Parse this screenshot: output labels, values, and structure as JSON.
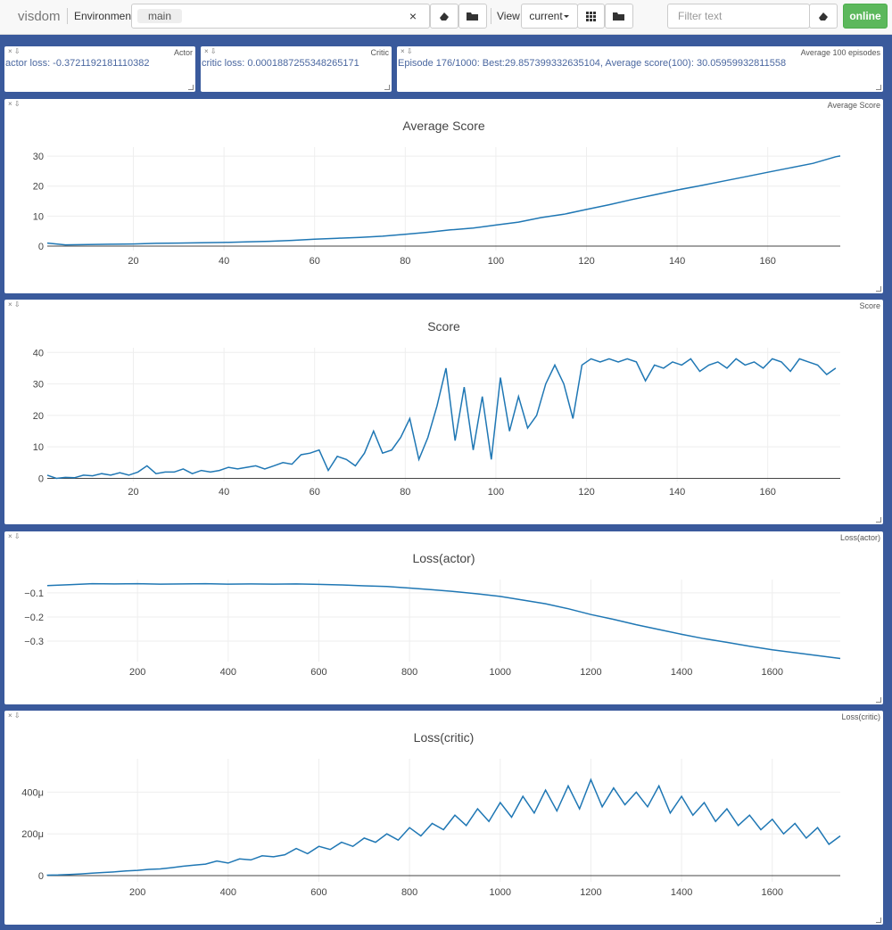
{
  "toolbar": {
    "brand": "visdom",
    "environment_label": "Environment",
    "environment": "main",
    "clear": "×",
    "view_label": "View",
    "view": "current",
    "filter_placeholder": "Filter text",
    "status": "online"
  },
  "text_panes": [
    {
      "title": "Actor",
      "text": "actor loss: -0.3721192181110382"
    },
    {
      "title": "Critic",
      "text": "critic loss: 0.0001887255348265171"
    },
    {
      "title": "Average 100 episodes",
      "text": "Episode 176/1000: Best:29.857399332635104, Average score(100): 30.05959932811558"
    }
  ],
  "chart_data": [
    {
      "type": "line",
      "pane_title": "Average Score",
      "title": "Average Score",
      "color": "#1f77b4",
      "grid": true,
      "x": [
        1,
        5,
        10,
        15,
        20,
        25,
        30,
        35,
        40,
        45,
        50,
        55,
        60,
        65,
        70,
        75,
        80,
        85,
        90,
        95,
        100,
        105,
        110,
        115,
        120,
        125,
        130,
        135,
        140,
        145,
        150,
        155,
        160,
        165,
        170,
        175,
        176
      ],
      "values": [
        1.0,
        0.4,
        0.5,
        0.6,
        0.7,
        0.9,
        1.0,
        1.1,
        1.2,
        1.4,
        1.6,
        1.9,
        2.3,
        2.6,
        2.9,
        3.3,
        3.9,
        4.6,
        5.4,
        6.0,
        7.0,
        8.0,
        9.5,
        10.6,
        12.2,
        13.8,
        15.5,
        17.1,
        18.7,
        20.1,
        21.6,
        23.1,
        24.6,
        26.1,
        27.6,
        29.8,
        30.06
      ],
      "xlim": [
        1,
        176
      ],
      "xticks": [
        20,
        40,
        60,
        80,
        100,
        120,
        140,
        160
      ],
      "ylim": [
        -1.5,
        33
      ],
      "yticks": [
        0,
        10,
        20,
        30
      ]
    },
    {
      "type": "line",
      "pane_title": "Score",
      "title": "Score",
      "color": "#1f77b4",
      "grid": true,
      "x": [
        1,
        3,
        5,
        7,
        9,
        11,
        13,
        15,
        17,
        19,
        21,
        23,
        25,
        27,
        29,
        31,
        33,
        35,
        37,
        39,
        41,
        43,
        45,
        47,
        49,
        51,
        53,
        55,
        57,
        59,
        61,
        63,
        65,
        67,
        69,
        71,
        73,
        75,
        77,
        79,
        81,
        83,
        85,
        87,
        89,
        91,
        93,
        95,
        97,
        99,
        101,
        103,
        105,
        107,
        109,
        111,
        113,
        115,
        117,
        119,
        121,
        123,
        125,
        127,
        129,
        131,
        133,
        135,
        137,
        139,
        141,
        143,
        145,
        147,
        149,
        151,
        153,
        155,
        157,
        159,
        161,
        163,
        165,
        167,
        169,
        171,
        173,
        175
      ],
      "values": [
        1,
        0,
        0.3,
        0.2,
        1,
        0.8,
        1.5,
        1,
        1.8,
        1,
        2,
        4,
        1.5,
        2,
        2,
        3,
        1.5,
        2.5,
        2,
        2.5,
        3.5,
        3,
        3.5,
        4,
        3,
        4,
        5,
        4.5,
        7.5,
        8,
        9,
        2.5,
        7,
        6,
        4,
        8,
        15,
        8,
        9,
        13,
        19,
        6,
        13,
        23,
        35,
        12,
        29,
        9,
        26,
        6,
        32,
        15,
        26,
        16,
        20,
        30,
        36,
        30,
        19,
        36,
        38,
        37,
        38,
        37,
        38,
        37,
        31,
        36,
        35,
        37,
        36,
        38,
        34,
        36,
        37,
        35,
        38,
        36,
        37,
        35,
        38,
        37,
        34,
        38,
        37,
        36,
        33,
        35
      ],
      "xlim": [
        1,
        176
      ],
      "xticks": [
        20,
        40,
        60,
        80,
        100,
        120,
        140,
        160
      ],
      "ylim": [
        -1,
        41.5
      ],
      "yticks": [
        0,
        10,
        20,
        30,
        40
      ]
    },
    {
      "type": "line",
      "pane_title": "Loss(actor)",
      "title": "Loss(actor)",
      "color": "#1f77b4",
      "grid": true,
      "x": [
        1,
        50,
        100,
        150,
        200,
        250,
        300,
        350,
        400,
        450,
        500,
        550,
        600,
        650,
        700,
        750,
        800,
        850,
        900,
        950,
        1000,
        1050,
        1100,
        1150,
        1200,
        1250,
        1300,
        1350,
        1400,
        1450,
        1500,
        1550,
        1600,
        1650,
        1700,
        1750
      ],
      "values": [
        -0.07,
        -0.066,
        -0.062,
        -0.063,
        -0.062,
        -0.064,
        -0.063,
        -0.062,
        -0.064,
        -0.063,
        -0.064,
        -0.063,
        -0.065,
        -0.067,
        -0.071,
        -0.074,
        -0.08,
        -0.087,
        -0.095,
        -0.104,
        -0.115,
        -0.13,
        -0.145,
        -0.166,
        -0.19,
        -0.21,
        -0.232,
        -0.252,
        -0.272,
        -0.29,
        -0.305,
        -0.321,
        -0.336,
        -0.348,
        -0.36,
        -0.372
      ],
      "xlim": [
        1,
        1750
      ],
      "xticks": [
        200,
        400,
        600,
        800,
        1000,
        1200,
        1400,
        1600
      ],
      "ylim": [
        -0.385,
        -0.045
      ],
      "yticks": [
        {
          "value": -0.1,
          "label": "−0.1"
        },
        {
          "value": -0.2,
          "label": "−0.2"
        },
        {
          "value": -0.3,
          "label": "−0.3"
        }
      ]
    },
    {
      "type": "line",
      "pane_title": "Loss(critic)",
      "title": "Loss(critic)",
      "color": "#1f77b4",
      "grid": true,
      "x": [
        0,
        25,
        50,
        75,
        100,
        125,
        150,
        175,
        200,
        225,
        250,
        275,
        300,
        325,
        350,
        375,
        400,
        425,
        450,
        475,
        500,
        525,
        550,
        575,
        600,
        625,
        650,
        675,
        700,
        725,
        750,
        775,
        800,
        825,
        850,
        875,
        900,
        925,
        950,
        975,
        1000,
        1025,
        1050,
        1075,
        1100,
        1125,
        1150,
        1175,
        1200,
        1225,
        1250,
        1275,
        1300,
        1325,
        1350,
        1375,
        1400,
        1425,
        1450,
        1475,
        1500,
        1525,
        1550,
        1575,
        1600,
        1625,
        1650,
        1675,
        1700,
        1725,
        1750
      ],
      "values": [
        2e-06,
        3e-06,
        5e-06,
        8e-06,
        1.2e-05,
        1.5e-05,
        1.8e-05,
        2.2e-05,
        2.5e-05,
        3e-05,
        3.2e-05,
        3.8e-05,
        4.5e-05,
        5e-05,
        5.5e-05,
        7e-05,
        6e-05,
        8e-05,
        7.5e-05,
        9.5e-05,
        9e-05,
        0.0001,
        0.00013,
        0.000105,
        0.00014,
        0.000125,
        0.00016,
        0.00014,
        0.00018,
        0.00016,
        0.0002,
        0.00017,
        0.00023,
        0.00019,
        0.00025,
        0.00022,
        0.00029,
        0.00024,
        0.00032,
        0.00026,
        0.00035,
        0.00028,
        0.00038,
        0.0003,
        0.00041,
        0.00031,
        0.00043,
        0.00032,
        0.00046,
        0.00033,
        0.00042,
        0.00034,
        0.0004,
        0.00033,
        0.00043,
        0.0003,
        0.00038,
        0.00029,
        0.00035,
        0.00026,
        0.00032,
        0.00024,
        0.00029,
        0.00022,
        0.00027,
        0.0002,
        0.00025,
        0.00018,
        0.00023,
        0.00015,
        0.00019
      ],
      "xlim": [
        1,
        1750
      ],
      "xticks": [
        200,
        400,
        600,
        800,
        1000,
        1200,
        1400,
        1600
      ],
      "ylim": [
        -3e-05,
        0.00056
      ],
      "yticks": [
        0,
        {
          "value": 0.0002,
          "label": "200μ"
        },
        {
          "value": 0.0004,
          "label": "400μ"
        }
      ]
    }
  ]
}
